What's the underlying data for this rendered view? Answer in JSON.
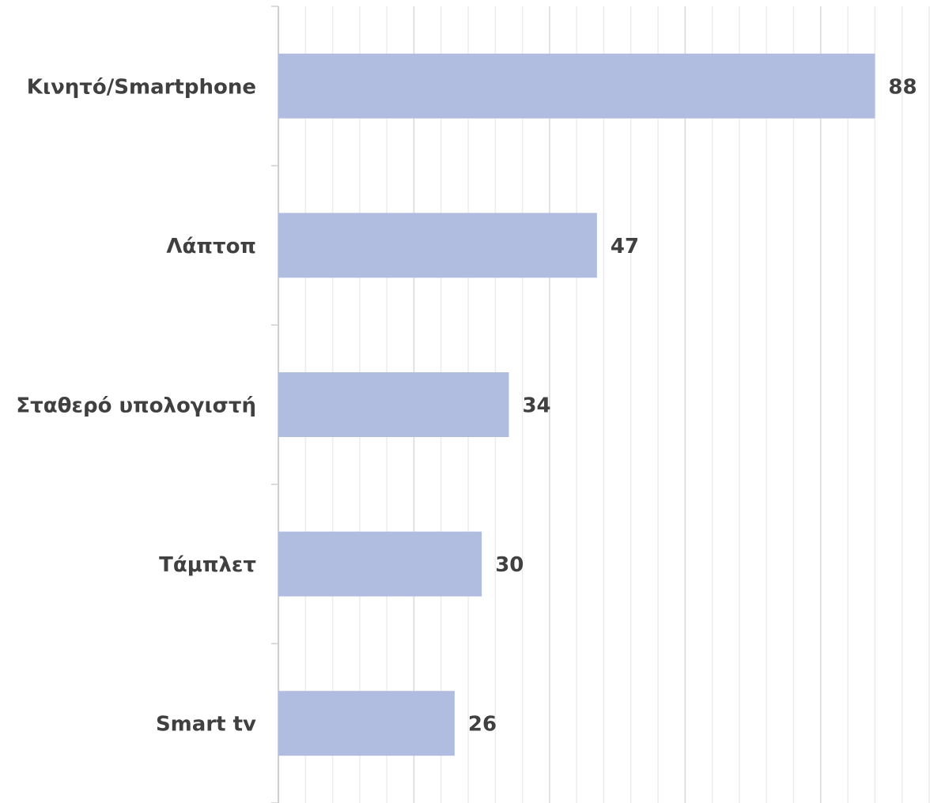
{
  "chart_data": {
    "type": "barh",
    "categories": [
      "Κινητό/Smartphone",
      "Λάπτοπ",
      "Σταθερό υπολογιστή",
      "Τάμπλετ",
      "Smart tv"
    ],
    "values": [
      88,
      47,
      34,
      30,
      26
    ],
    "color": "#b0bde0",
    "xlim": [
      0,
      96
    ],
    "xticks": [
      0,
      20,
      40,
      60,
      80
    ],
    "xminorticks": [
      4,
      8,
      12,
      16,
      24,
      28,
      32,
      36,
      44,
      48,
      52,
      56,
      64,
      68,
      72,
      76,
      84,
      88,
      92,
      96
    ],
    "grid": true
  }
}
